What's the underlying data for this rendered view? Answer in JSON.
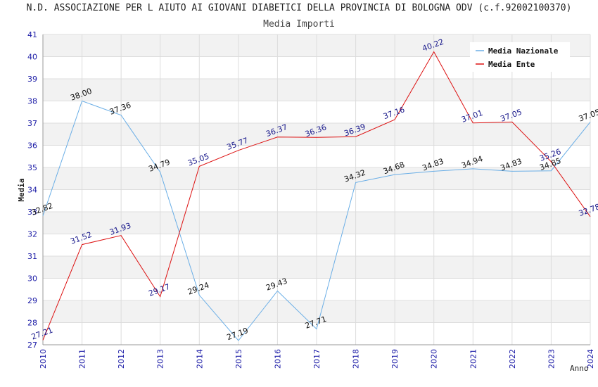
{
  "chart_data": {
    "type": "line",
    "title": "N.D. ASSOCIAZIONE PER L AIUTO AI GIOVANI DIABETICI DELLA PROVINCIA DI BOLOGNA ODV (c.f.92002100370)",
    "subtitle": "Media Importi",
    "xlabel": "Anno",
    "ylabel": "Media",
    "x": [
      2010,
      2011,
      2012,
      2013,
      2014,
      2015,
      2016,
      2017,
      2018,
      2019,
      2020,
      2021,
      2022,
      2023,
      2024
    ],
    "ylim": [
      27,
      41
    ],
    "yticks": [
      27,
      28,
      29,
      30,
      31,
      32,
      33,
      34,
      35,
      36,
      37,
      38,
      39,
      40,
      41
    ],
    "grid": true,
    "legend_position": "top-right",
    "series": [
      {
        "name": "Media Nazionale",
        "color": "#6aaee6",
        "label_color": "#111111",
        "values": [
          32.82,
          38.0,
          37.36,
          34.79,
          29.24,
          27.19,
          29.43,
          27.71,
          34.32,
          34.68,
          34.83,
          34.94,
          34.83,
          34.85,
          37.05
        ],
        "labels": [
          "32.82",
          "38.00",
          "37.36",
          "34.79",
          "29.24",
          "27.19",
          "29.43",
          "27.71",
          "34.32",
          "34.68",
          "34.83",
          "34.94",
          "34.83",
          "34.85",
          "37.05"
        ]
      },
      {
        "name": "Media Ente",
        "color": "#dd1111",
        "label_color": "#1a1a8c",
        "values": [
          27.21,
          31.52,
          31.93,
          29.17,
          35.05,
          35.77,
          36.37,
          36.36,
          36.39,
          37.16,
          40.22,
          37.01,
          37.05,
          35.26,
          32.78
        ],
        "labels": [
          "27.21",
          "31.52",
          "31.93",
          "29.17",
          "35.05",
          "35.77",
          "36.37",
          "36.36",
          "36.39",
          "37.16",
          "40.22",
          "37.01",
          "37.05",
          "35.26",
          "32.78"
        ]
      }
    ]
  }
}
